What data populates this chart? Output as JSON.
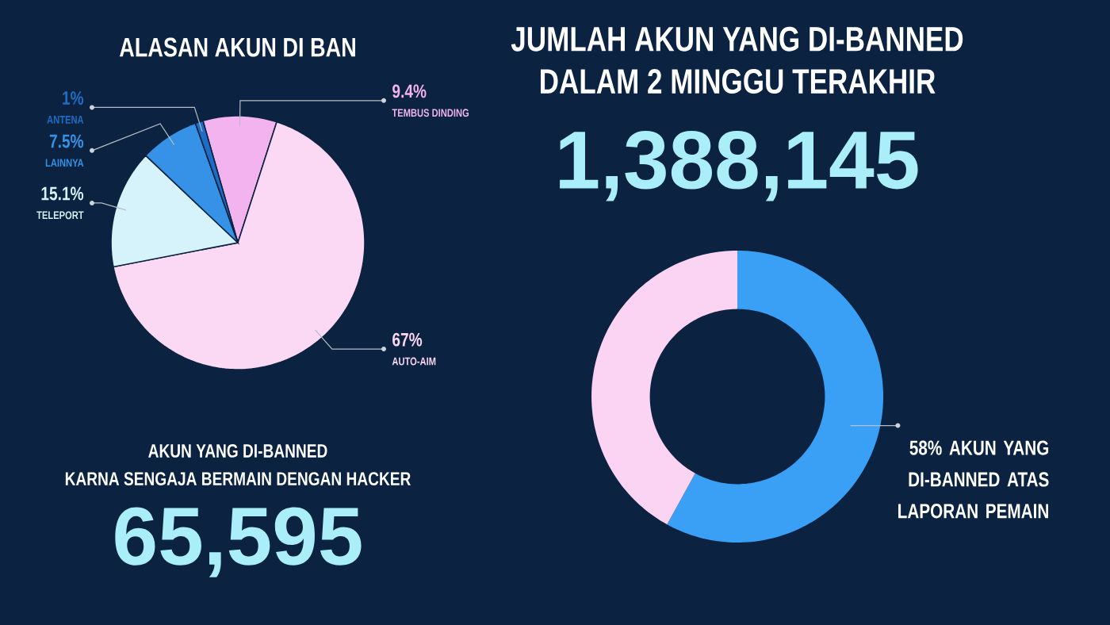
{
  "chart_data": [
    {
      "type": "pie",
      "title": "ALASAN AKUN DI BAN",
      "categories": [
        "TEMBUS DINDING",
        "AUTO-AIM",
        "TELEPORT",
        "LAINNYA",
        "ANTENA"
      ],
      "values": [
        9.4,
        67,
        15.1,
        7.5,
        1
      ],
      "value_labels": [
        "9.4%",
        "67%",
        "15.1%",
        "7.5%",
        "1%"
      ],
      "colors": [
        "#f2b3ee",
        "#fbd8f4",
        "#d6f2fa",
        "#3592e6",
        "#1f6cc4"
      ],
      "annotations": [
        "AKUN YANG DI-BANNED",
        "KARNA SENGAJA BERMAIN DENGAN HACKER",
        "65,595"
      ]
    },
    {
      "type": "donut",
      "title": "JUMLAH AKUN YANG DI-BANNED",
      "subtitle": "DALAM 2 MINGGU TERAKHIR",
      "annotations": [
        "1,388,145"
      ],
      "categories": [
        "AKUN YANG DI-BANNED ATAS LAPORAN PEMAIN",
        null
      ],
      "values": [
        58,
        42
      ],
      "value_labels": [
        "58%",
        null
      ],
      "colors": [
        "#3aa0f6",
        "#fbd3f3"
      ]
    }
  ]
}
